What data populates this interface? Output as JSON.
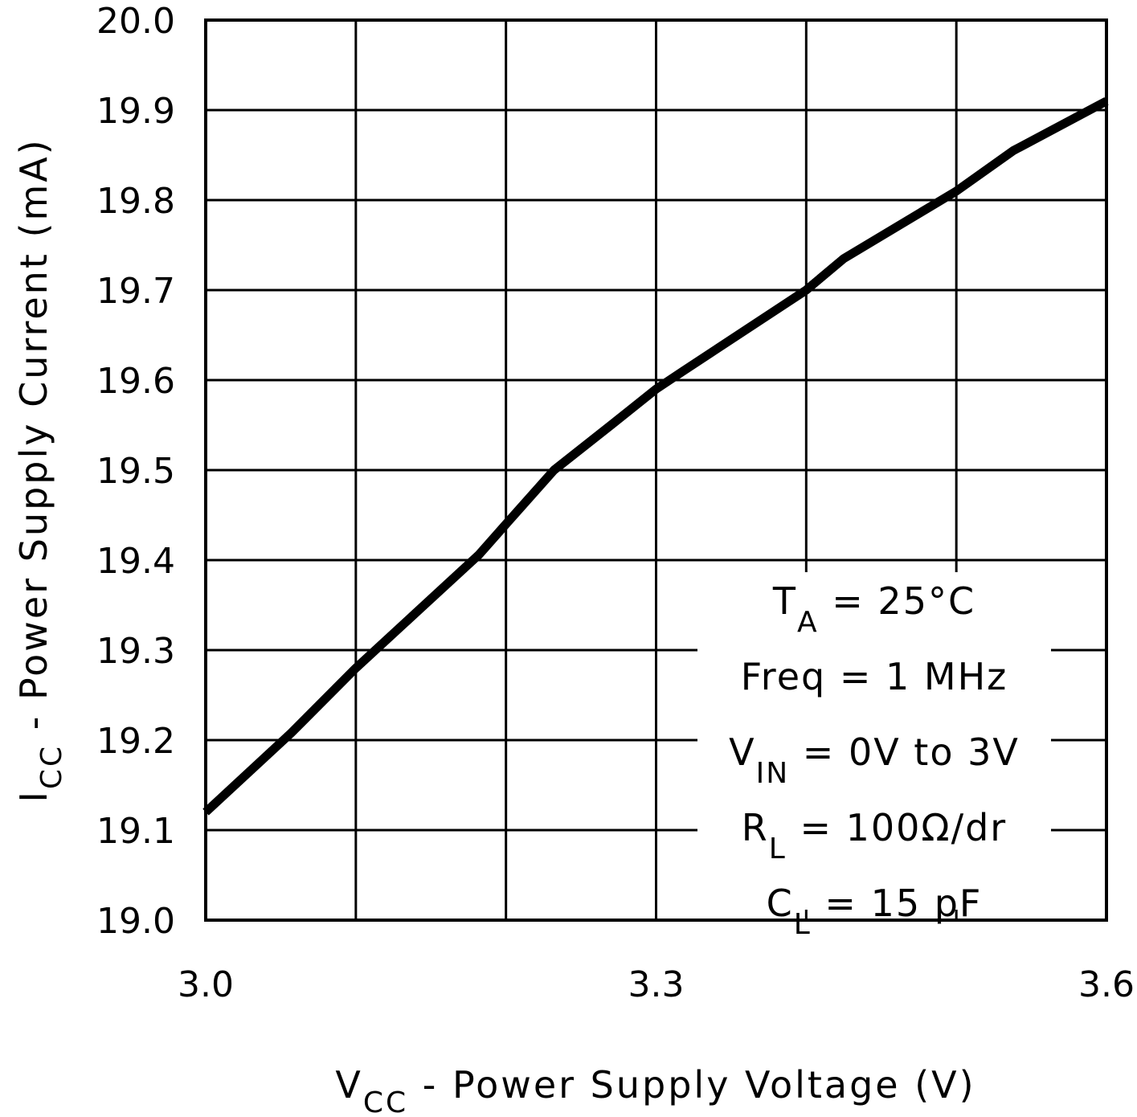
{
  "chart_data": {
    "type": "line",
    "title": "",
    "xlabel": {
      "main": "V",
      "sub": "CC",
      "rest": " - Power Supply Voltage (V)"
    },
    "ylabel": {
      "main": "I",
      "sub": "CC",
      "rest": " - Power Supply Current (mA)"
    },
    "xlim": [
      3.0,
      3.6
    ],
    "ylim": [
      19.0,
      20.0
    ],
    "grid": true,
    "x_gridlines": [
      3.0,
      3.1,
      3.2,
      3.3,
      3.4,
      3.5,
      3.6
    ],
    "x_tick_labels": [
      {
        "value": 3.0,
        "label": "3.0"
      },
      {
        "value": 3.3,
        "label": "3.3"
      },
      {
        "value": 3.6,
        "label": "3.6"
      }
    ],
    "y_tick_labels": [
      {
        "value": 20.0,
        "label": "20.0"
      },
      {
        "value": 19.9,
        "label": "19.9"
      },
      {
        "value": 19.8,
        "label": "19.8"
      },
      {
        "value": 19.7,
        "label": "19.7"
      },
      {
        "value": 19.6,
        "label": "19.6"
      },
      {
        "value": 19.5,
        "label": "19.5"
      },
      {
        "value": 19.4,
        "label": "19.4"
      },
      {
        "value": 19.3,
        "label": "19.3"
      },
      {
        "value": 19.2,
        "label": "19.2"
      },
      {
        "value": 19.1,
        "label": "19.1"
      },
      {
        "value": 19.0,
        "label": "19.0"
      }
    ],
    "series": [
      {
        "color": "#000000",
        "x": [
          3.0,
          3.057,
          3.1,
          3.182,
          3.2,
          3.232,
          3.27,
          3.3,
          3.318,
          3.4,
          3.425,
          3.5,
          3.538,
          3.6
        ],
        "y": [
          19.12,
          19.208,
          19.28,
          19.406,
          19.44,
          19.5,
          19.55,
          19.59,
          19.61,
          19.7,
          19.735,
          19.81,
          19.855,
          19.91
        ]
      }
    ],
    "annotations": [
      {
        "main": "T",
        "sub": "A",
        "rest": " = 25°C"
      },
      {
        "main": "Freq = 1 MHz",
        "sub": "",
        "rest": ""
      },
      {
        "main": "V",
        "sub": "IN",
        "rest": " = 0V to 3V"
      },
      {
        "main": "R",
        "sub": "L",
        "rest": " = 100Ω/dr"
      },
      {
        "main": "C",
        "sub": "L",
        "rest": " = 15 pF"
      }
    ]
  }
}
